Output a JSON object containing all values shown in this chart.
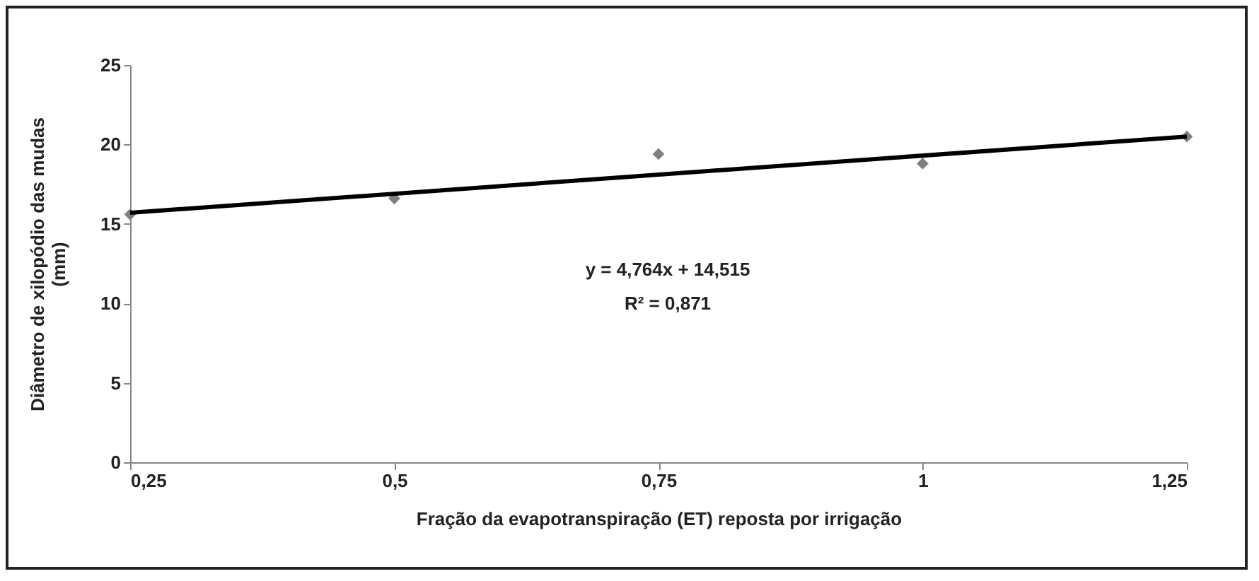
{
  "chart_data": {
    "type": "scatter",
    "xlabel": "Fração da evapotranspiração (ET) reposta por irrigação",
    "ylabel": "Diâmetro de xilopódio das mudas (mm)",
    "x": [
      0.25,
      0.5,
      0.75,
      1,
      1.25
    ],
    "series": [
      {
        "type": "scatter",
        "color": "#808080",
        "marker": "diamond",
        "values": [
          15.6,
          16.6,
          19.4,
          18.8,
          20.5
        ]
      },
      {
        "type": "line",
        "color": "#000000",
        "x": [
          0.25,
          1.25
        ],
        "values": [
          15.7,
          20.5
        ]
      }
    ],
    "xlim": [
      0.25,
      1.25
    ],
    "xticks": [
      {
        "value": 0.25,
        "label": "0,25"
      },
      {
        "value": 0.5,
        "label": "0,5"
      },
      {
        "value": 0.75,
        "label": "0,75"
      },
      1,
      {
        "value": 1.25,
        "label": "1,25"
      }
    ],
    "ylim": [
      0,
      25
    ],
    "yticks": [
      0,
      5,
      10,
      15,
      20,
      25
    ],
    "annotations": [
      "y = 4,764x + 14,515",
      "R² = 0,871"
    ],
    "grid": false
  }
}
